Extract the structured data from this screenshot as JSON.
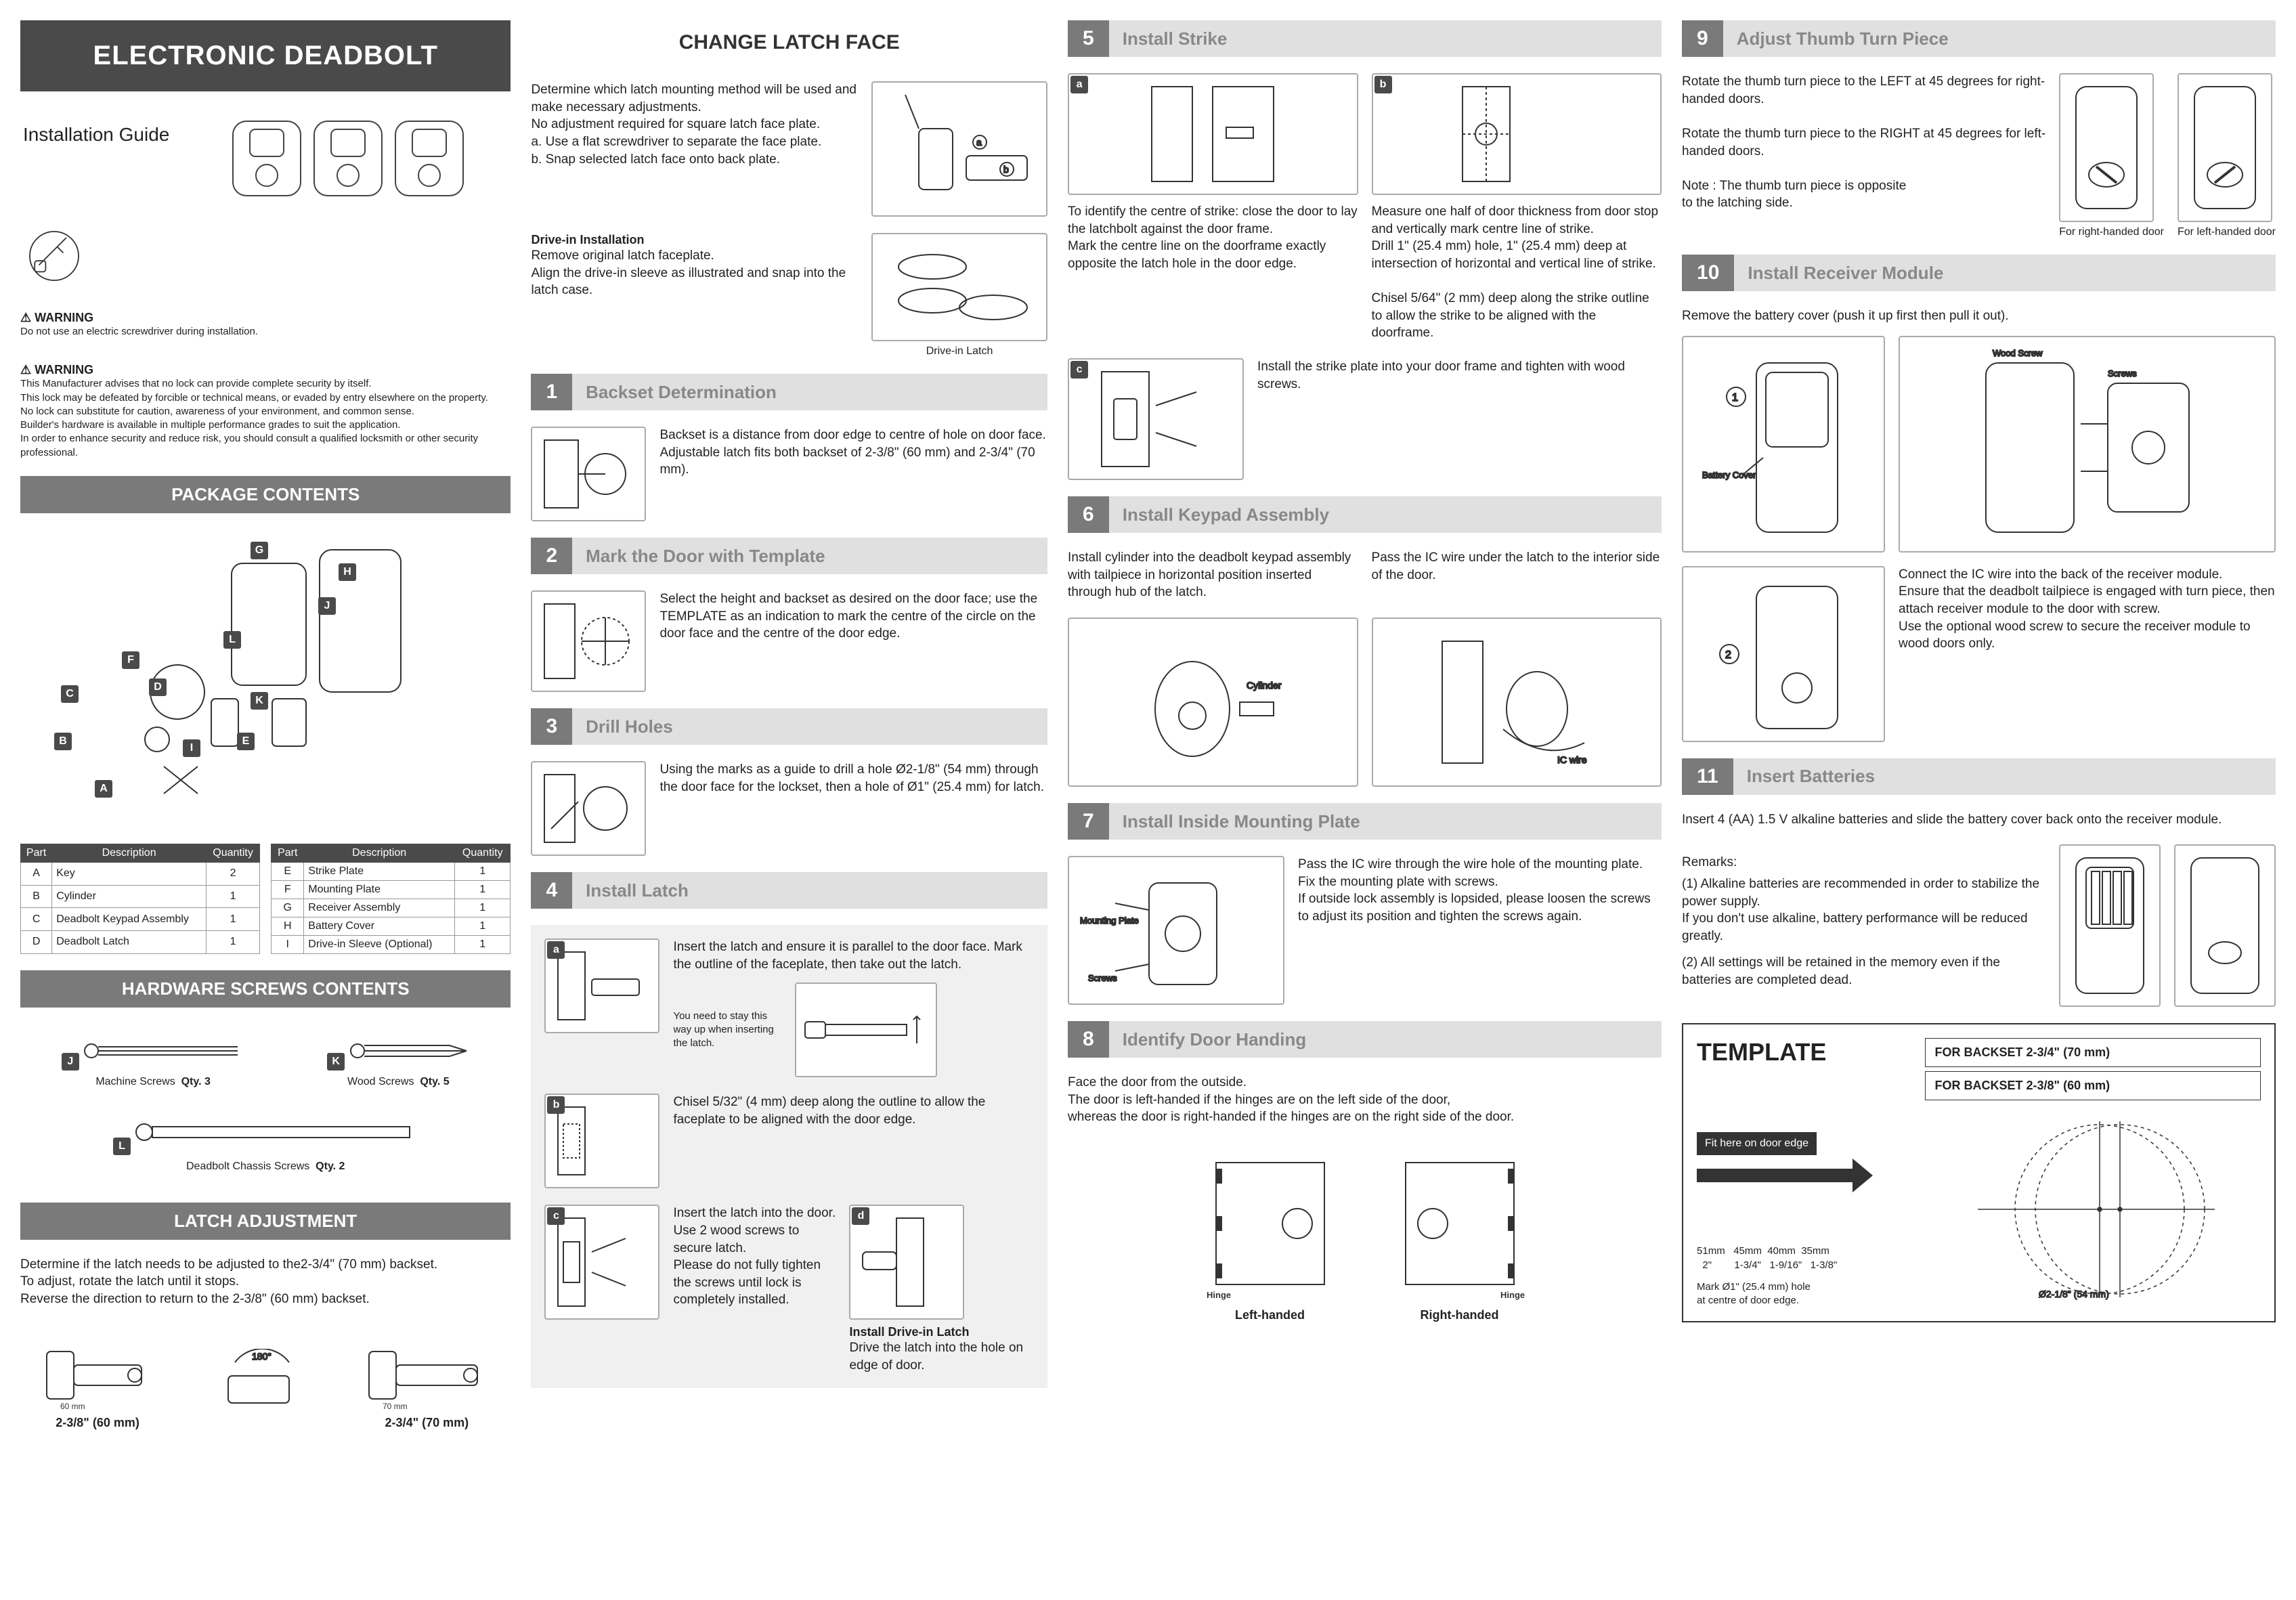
{
  "title": "ELECTRONIC DEADBOLT",
  "subtitle": "Installation Guide",
  "warning1_heading": "⚠ WARNING",
  "warning1_text": "Do not use an electric screwdriver during installation.",
  "warning2_heading": "⚠ WARNING",
  "warning2_text": "This Manufacturer advises that no lock can provide complete security by itself.\nThis lock may be defeated by forcible or technical means, or evaded by entry elsewhere on the property.\nNo lock can substitute for caution, awareness of your environment, and common sense.\nBuilder's hardware is available in multiple performance grades to suit the application.\nIn order to enhance security and reduce risk, you should consult a qualified locksmith or other security professional.",
  "package_contents_title": "PACKAGE CONTENTS",
  "parts_headers": [
    "Part",
    "Description",
    "Quantity"
  ],
  "parts_left": [
    [
      "A",
      "Key",
      "2"
    ],
    [
      "B",
      "Cylinder",
      "1"
    ],
    [
      "C",
      "Deadbolt Keypad Assembly",
      "1"
    ],
    [
      "D",
      "Deadbolt Latch",
      "1"
    ]
  ],
  "parts_right": [
    [
      "E",
      "Strike Plate",
      "1"
    ],
    [
      "F",
      "Mounting Plate",
      "1"
    ],
    [
      "G",
      "Receiver Assembly",
      "1"
    ],
    [
      "H",
      "Battery Cover",
      "1"
    ],
    [
      "I",
      "Drive-in Sleeve (Optional)",
      "1"
    ]
  ],
  "hardware_title": "HARDWARE SCREWS CONTENTS",
  "screws": {
    "machine": {
      "label": "Machine Screws",
      "qty": "Qty. 3",
      "letter": "J"
    },
    "wood": {
      "label": "Wood Screws",
      "qty": "Qty. 5",
      "letter": "K"
    },
    "chassis": {
      "label": "Deadbolt  Chassis Screws",
      "qty": "Qty. 2",
      "letter": "L"
    }
  },
  "latch_adj_title": "LATCH ADJUSTMENT",
  "latch_adj_text": "Determine if the latch needs to be adjusted to the2-3/4\" (70 mm) backset.\nTo adjust, rotate the latch until it stops.\nReverse the direction to return to the 2-3/8\" (60 mm) backset.",
  "latch_238": "2-3/8\" (60 mm)",
  "latch_234": "2-3/4\" (70 mm)",
  "latch_60": "60 mm",
  "latch_70": "70 mm",
  "latch_180": "180°",
  "change_latch_title": "CHANGE LATCH FACE",
  "change_latch_text": "Determine which latch mounting method will be used and make necessary adjustments.\nNo adjustment required for square latch face plate.\na. Use a flat screwdriver to separate the face plate.\nb. Snap selected latch face onto back plate.",
  "drivein_heading": "Drive-in Installation",
  "drivein_text": "Remove original latch faceplate.\nAlign the drive-in sleeve as illustrated and snap into the latch case.",
  "drivein_caption": "Drive-in Latch",
  "step1_title": "Backset Determination",
  "step1_text": "Backset is a distance from door edge to centre of hole on door face.\nAdjustable latch fits both backset of 2-3/8\" (60 mm) and 2-3/4\" (70 mm).",
  "step2_title": "Mark the Door with Template",
  "step2_text": "Select the height and backset as desired on the door face; use the TEMPLATE as an indication to mark the centre of the circle on the door face and the centre of the door edge.",
  "step3_title": "Drill Holes",
  "step3_text": "Using the marks as a guide to drill a hole Ø2-1/8\" (54 mm) through the door face for the lockset, then a hole of Ø1\" (25.4 mm) for latch.",
  "step4_title": "Install Latch",
  "step4a_text": "Insert the latch and ensure it is parallel to the door face. Mark the outline of the faceplate, then take out the latch.",
  "step4a_note": "You need to stay this way up when inserting the latch.",
  "step4b_text": "Chisel 5/32\" (4 mm) deep along the outline to allow the faceplate to be aligned with the door edge.",
  "step4c_text": "Insert the latch into the door. Use 2 wood screws to secure latch.\nPlease do not fully tighten the screws until lock is completely installed.",
  "step4d_heading": "Install Drive-in Latch",
  "step4d_text": "Drive the latch into the hole on edge of door.",
  "step5_title": "Install Strike",
  "step5a_text": "To identify the centre of strike: close the door to lay the latchbolt against the door frame.\nMark the centre line on the doorframe exactly opposite the latch hole in the door edge.",
  "step5b_text": "Measure one half of door thickness from door stop and vertically mark centre line of strike.\nDrill 1\" (25.4 mm) hole, 1\" (25.4 mm) deep at intersection of horizontal and vertical line of strike.\n\nChisel 5/64\" (2 mm) deep along the strike outline to allow the strike to be aligned with the doorframe.",
  "step5c_text": "Install the strike plate into your door frame and tighten with wood screws.",
  "step6_title": "Install Keypad Assembly",
  "step6a_text": "Install cylinder into the deadbolt keypad assembly with tailpiece in horizontal position inserted through hub of the latch.",
  "step6b_text": "Pass the IC wire under the latch to the interior side of the door.",
  "step6_cyl": "Cylinder",
  "step6_wire": "IC wire",
  "step7_title": "Install Inside Mounting Plate",
  "step7_text": "Pass the IC wire through the wire hole of the mounting plate.\nFix the mounting plate with screws.\nIf outside lock assembly is lopsided, please loosen the screws to adjust its position and tighten the screws again.",
  "step7_plate": "Mounting Plate",
  "step7_screws": "Screws",
  "step8_title": "Identify Door Handing",
  "step8_text": "Face the door from the outside.\nThe door is left-handed if the hinges are on the left side of the door,\nwhereas the door is right-handed if the hinges are on the right side of the door.",
  "step8_left": "Left-handed",
  "step8_right": "Right-handed",
  "step8_hinge": "Hinge",
  "step9_title": "Adjust Thumb Turn Piece",
  "step9_text": "Rotate the thumb turn piece to the LEFT at 45 degrees for right-handed doors.\n\nRotate the thumb turn piece to the RIGHT at 45 degrees for left-handed doors.\n\nNote : The thumb turn piece is opposite\n           to the latching side.",
  "step9_right_cap": "For right-handed door",
  "step9_left_cap": "For left-handed door",
  "step10_title": "Install Receiver Module",
  "step10a_text": "Remove the battery cover (push it up first then pull it out).",
  "step10_cover": "Battery Cover",
  "step10_ws": "Wood Screw",
  "step10_scr": "Screws",
  "step10b_text": "Connect the IC wire into the back of the receiver module.\nEnsure that the deadbolt tailpiece is engaged with turn piece, then attach receiver module to the door with screw.\nUse the optional wood screw to secure the receiver module to wood doors only.",
  "step11_title": "Insert Batteries",
  "step11_text": "Insert 4 (AA) 1.5 V alkaline batteries and slide the battery cover back onto the receiver module.",
  "step11_remarks_heading": "Remarks:",
  "step11_remark1": "(1) Alkaline batteries are recommended in order to stabilize the power supply.\n      If you don't use alkaline, battery performance will be reduced greatly.",
  "step11_remark2": "(2) All settings will be retained in the memory even if the batteries are completed dead.",
  "template_title": "TEMPLATE",
  "template_70": "FOR BACKSET 2-3/4\" (70 mm)",
  "template_60": "FOR BACKSET 2-3/8\" (60 mm)",
  "template_fit": "Fit here on door edge",
  "template_ticks": "51mm   45mm  40mm  35mm",
  "template_ticks2": "  2\"        1-3/4\"   1-9/16\"   1-3/8\"",
  "template_mark": "Mark Ø1\" (25.4 mm) hole at centre of door edge.",
  "template_big": "Ø2-1/8\" (54 mm)",
  "colors": {
    "dark": "#4a4a4a",
    "mid": "#7a7a7a",
    "light": "#e0e0e0"
  }
}
